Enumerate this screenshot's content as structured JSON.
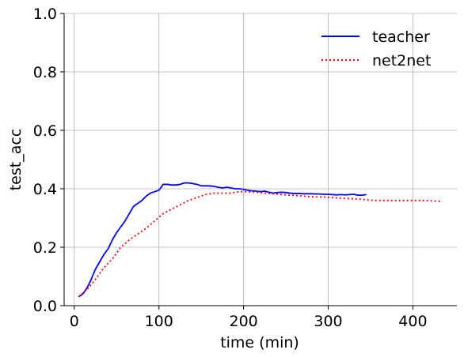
{
  "chart_data": {
    "type": "line",
    "title": "",
    "xlabel": "time (min)",
    "ylabel": "test_acc",
    "xlim": [
      -12,
      452
    ],
    "ylim": [
      0.0,
      1.0
    ],
    "xticks": [
      0,
      100,
      200,
      300,
      400
    ],
    "yticks": [
      0.0,
      0.2,
      0.4,
      0.6,
      0.8,
      1.0
    ],
    "xtick_labels": [
      "0",
      "100",
      "200",
      "300",
      "400"
    ],
    "ytick_labels": [
      "0.0",
      "0.2",
      "0.4",
      "0.6",
      "0.8",
      "1.0"
    ],
    "grid": true,
    "legend_position": "top-right",
    "series": [
      {
        "name": "teacher",
        "color": "#0000ff",
        "style": "solid",
        "x": [
          5,
          10,
          15,
          20,
          25,
          30,
          35,
          40,
          45,
          50,
          55,
          60,
          65,
          70,
          75,
          80,
          85,
          90,
          95,
          100,
          105,
          110,
          115,
          120,
          125,
          130,
          135,
          140,
          145,
          150,
          155,
          160,
          165,
          170,
          175,
          180,
          185,
          190,
          195,
          200,
          205,
          210,
          215,
          220,
          225,
          230,
          235,
          240,
          245,
          250,
          255,
          260,
          265,
          270,
          275,
          280,
          285,
          290,
          295,
          300,
          305,
          310,
          315,
          320,
          325,
          330,
          335,
          340,
          345
        ],
        "y": [
          0.03,
          0.04,
          0.06,
          0.09,
          0.125,
          0.15,
          0.175,
          0.195,
          0.225,
          0.25,
          0.27,
          0.29,
          0.315,
          0.34,
          0.35,
          0.36,
          0.375,
          0.385,
          0.39,
          0.395,
          0.415,
          0.415,
          0.413,
          0.413,
          0.415,
          0.42,
          0.42,
          0.418,
          0.415,
          0.41,
          0.41,
          0.41,
          0.408,
          0.405,
          0.403,
          0.405,
          0.403,
          0.4,
          0.4,
          0.398,
          0.395,
          0.393,
          0.392,
          0.39,
          0.392,
          0.388,
          0.385,
          0.387,
          0.388,
          0.387,
          0.385,
          0.384,
          0.384,
          0.383,
          0.383,
          0.383,
          0.382,
          0.382,
          0.381,
          0.381,
          0.38,
          0.379,
          0.38,
          0.379,
          0.38,
          0.381,
          0.378,
          0.378,
          0.38
        ]
      },
      {
        "name": "net2net",
        "color": "#ff0000",
        "style": "dotted",
        "x": [
          5,
          15,
          25,
          35,
          45,
          55,
          65,
          75,
          85,
          95,
          105,
          115,
          125,
          135,
          145,
          155,
          165,
          175,
          185,
          195,
          205,
          215,
          225,
          235,
          245,
          255,
          265,
          275,
          285,
          295,
          305,
          315,
          325,
          335,
          345,
          355,
          365,
          375,
          385,
          395,
          405,
          415,
          425,
          435
        ],
        "y": [
          0.03,
          0.055,
          0.09,
          0.13,
          0.16,
          0.2,
          0.225,
          0.245,
          0.265,
          0.29,
          0.315,
          0.33,
          0.345,
          0.36,
          0.37,
          0.38,
          0.385,
          0.385,
          0.385,
          0.39,
          0.39,
          0.388,
          0.385,
          0.383,
          0.38,
          0.378,
          0.376,
          0.374,
          0.372,
          0.372,
          0.37,
          0.368,
          0.366,
          0.365,
          0.362,
          0.36,
          0.36,
          0.36,
          0.36,
          0.36,
          0.36,
          0.36,
          0.358,
          0.357
        ]
      }
    ]
  }
}
